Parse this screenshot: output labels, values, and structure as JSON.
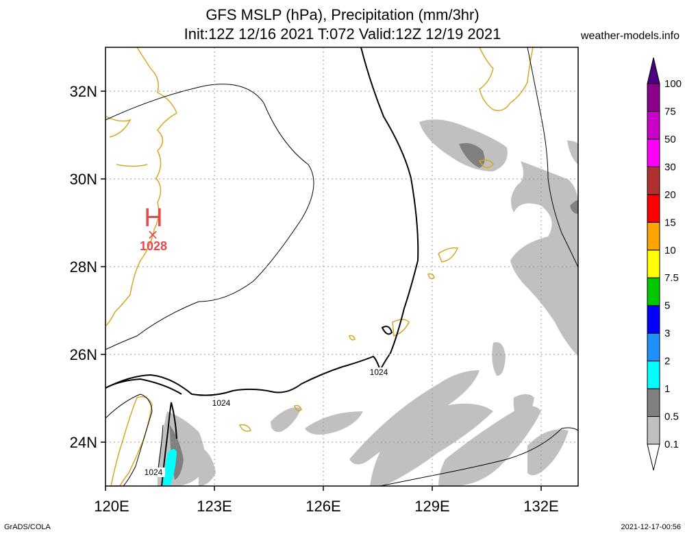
{
  "title_line1": "GFS MSLP (hPa), Precipitation (mm/3hr)",
  "title_line2": "Init:12Z 12/16 2021 T:072 Valid:12Z 12/19 2021",
  "credit": "weather-models.info",
  "footer_left": "GrADS/COLA",
  "footer_right": "2021-12-17-00:56",
  "map": {
    "lon_range": [
      120,
      133
    ],
    "lat_range": [
      23,
      33
    ],
    "x_ticks": [
      "120E",
      "123E",
      "126E",
      "129E",
      "132E"
    ],
    "y_ticks": [
      "32N",
      "30N",
      "28N",
      "26N",
      "24N"
    ],
    "high_center": {
      "symbol": "H",
      "value": "1028",
      "lon": 121.3,
      "lat": 28.8
    },
    "isobar_labels": [
      {
        "text": "1024",
        "lon": 123.1,
        "lat": 24.9
      },
      {
        "text": "1024",
        "lon": 127.5,
        "lat": 25.7
      },
      {
        "text": "1024",
        "lon": 121.3,
        "lat": 23.4
      }
    ]
  },
  "colorbar": {
    "levels": [
      "0.1",
      "0.5",
      "1",
      "2",
      "3",
      "5",
      "7.5",
      "10",
      "15",
      "20",
      "30",
      "50",
      "75",
      "100"
    ],
    "colors": [
      "#c0c0c0",
      "#808080",
      "#00ffff",
      "#1e90ff",
      "#0000ff",
      "#00c800",
      "#ffff00",
      "#ffa500",
      "#ff0000",
      "#b03030",
      "#ff00ff",
      "#c800c8",
      "#8b008b",
      "#4b0082"
    ]
  }
}
